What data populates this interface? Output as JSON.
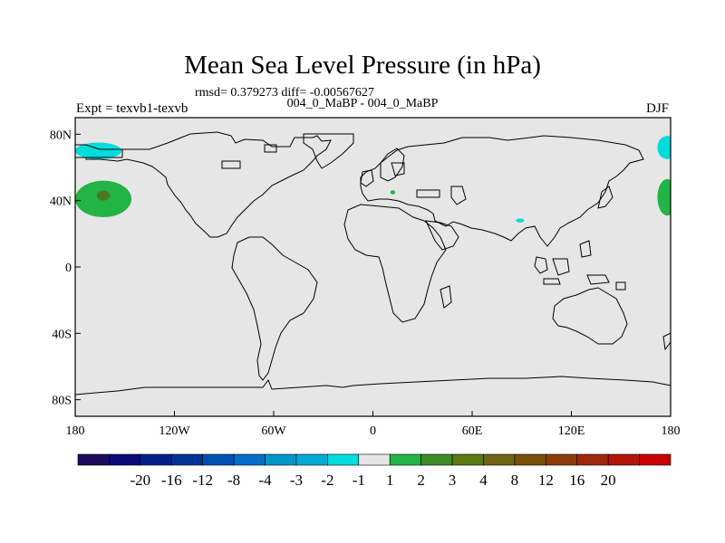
{
  "title": "Mean Sea Level Pressure (in hPa)",
  "stats": "rmsd= 0.379273  diff= -0.00567627",
  "subtitle": "004_0_MaBP - 004_0_MaBP",
  "experiment": "Expt = texvb1-texvb",
  "season": "DJF",
  "map": {
    "projection": "cylindrical-equidistant",
    "lon_range": [
      -180,
      180
    ],
    "lat_range": [
      -90,
      90
    ],
    "background_color": "#e6e6e6",
    "x_ticks": [
      {
        "lon": -180,
        "label": "180"
      },
      {
        "lon": -120,
        "label": "120W"
      },
      {
        "lon": -60,
        "label": "60W"
      },
      {
        "lon": 0,
        "label": "0"
      },
      {
        "lon": 60,
        "label": "60E"
      },
      {
        "lon": 120,
        "label": "120E"
      },
      {
        "lon": 180,
        "label": "180"
      }
    ],
    "y_ticks": [
      {
        "lat": 80,
        "label": "80N"
      },
      {
        "lat": 40,
        "label": "40N"
      },
      {
        "lat": 0,
        "label": "0"
      },
      {
        "lat": -40,
        "label": "40S"
      },
      {
        "lat": -80,
        "label": "80S"
      }
    ],
    "anomaly_regions": [
      {
        "name": "north-pacific-arctic-low",
        "level": "-2 to -1",
        "color": "#00dcdc",
        "lon": -166,
        "lat": 70,
        "lon_half_width": 14,
        "lat_half_height": 5
      },
      {
        "name": "north-pacific-high",
        "level": "1 to 2",
        "color": "#22b444",
        "lon": -163,
        "lat": 41,
        "lon_half_width": 17,
        "lat_half_height": 11
      },
      {
        "name": "north-pacific-high-core",
        "level": "2 to 3",
        "color": "#4a7a1e",
        "lon": -163,
        "lat": 43,
        "lon_half_width": 4,
        "lat_half_height": 3
      },
      {
        "name": "east-arctic-low",
        "level": "-2 to -1",
        "color": "#00dcdc",
        "lon": 178,
        "lat": 72,
        "lon_half_width": 6,
        "lat_half_height": 7
      },
      {
        "name": "east-pacific-high",
        "level": "1 to 2",
        "color": "#22b444",
        "lon": 178,
        "lat": 42,
        "lon_half_width": 6,
        "lat_half_height": 11
      },
      {
        "name": "mediterranean-high",
        "level": "1 to 2",
        "color": "#22b444",
        "lon": 12,
        "lat": 45,
        "lon_half_width": 1.5,
        "lat_half_height": 1.2
      },
      {
        "name": "himalaya-low",
        "level": "-2 to -1",
        "color": "#00dcdc",
        "lon": 89,
        "lat": 28,
        "lon_half_width": 2.5,
        "lat_half_height": 1.2
      }
    ]
  },
  "colorbar": {
    "colors": [
      "#1e0a5a",
      "#0a0a78",
      "#001e8c",
      "#003296",
      "#0050b4",
      "#006ec8",
      "#0096c8",
      "#00aad2",
      "#00dcdc",
      "#e6e6e6",
      "#22b444",
      "#3c8c28",
      "#5a7814",
      "#6e6414",
      "#78500a",
      "#8c3c0a",
      "#a0280a",
      "#b4140a",
      "#c80000"
    ],
    "labels": [
      "-20",
      "-16",
      "-12",
      "-8",
      "-4",
      "-3",
      "-2",
      "-1",
      "1",
      "2",
      "3",
      "4",
      "8",
      "12",
      "16",
      "20"
    ]
  }
}
